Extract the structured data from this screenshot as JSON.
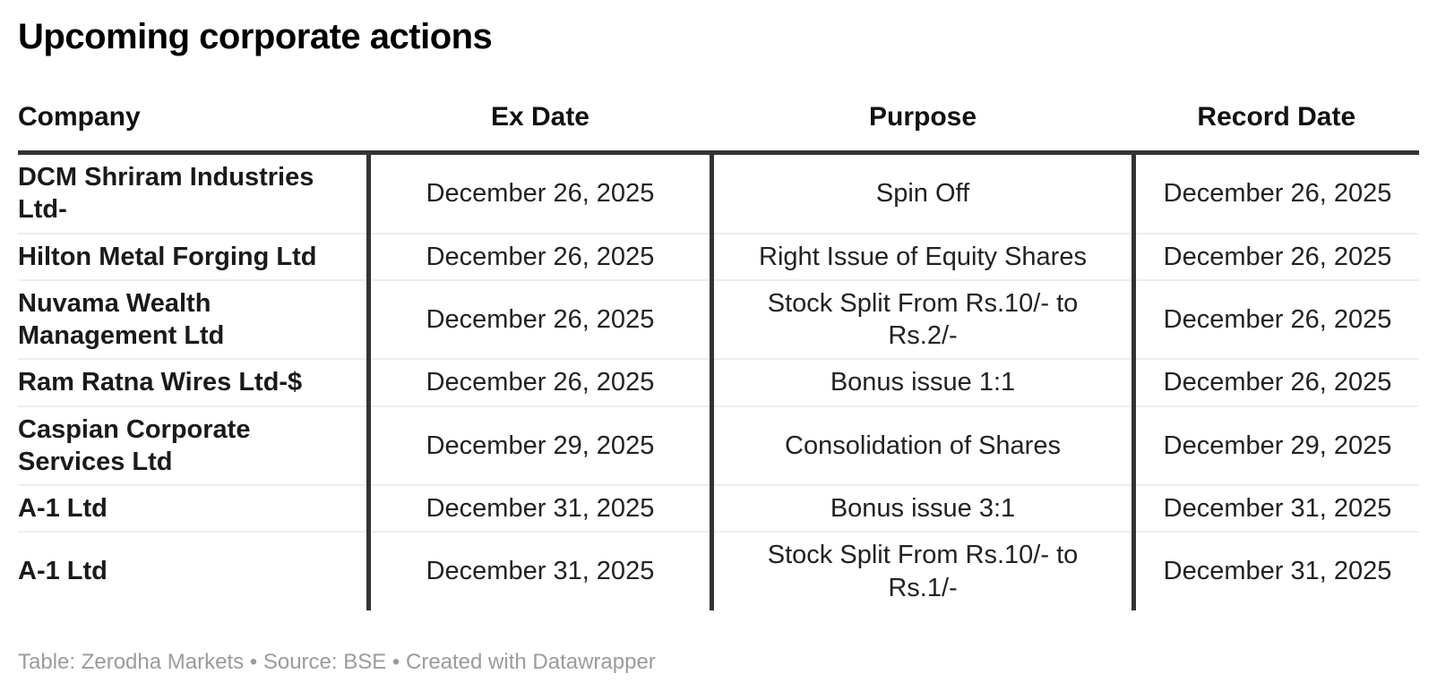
{
  "title": "Upcoming corporate actions",
  "footer": {
    "text": "Table: Zerodha Markets • Source: BSE • Created with Datawrapper"
  },
  "colors": {
    "title_text": "#000000",
    "body_text": "#222222",
    "header_rule": "#333333",
    "column_divider": "#333333",
    "row_separator": "#ededed",
    "footer_text": "#9b9b9b",
    "background": "#ffffff"
  },
  "chart_data": {
    "type": "table",
    "title": "Upcoming corporate actions",
    "columns": [
      {
        "label": "Company",
        "align": "left"
      },
      {
        "label": "Ex Date",
        "align": "center"
      },
      {
        "label": "Purpose",
        "align": "center"
      },
      {
        "label": "Record Date",
        "align": "center"
      }
    ],
    "column_width_pct": [
      25.03,
      24.49,
      30.12,
      20.36
    ],
    "rows": [
      [
        "DCM Shriram Industries Ltd-",
        "December 26, 2025",
        "Spin Off",
        "December 26, 2025"
      ],
      [
        "Hilton Metal Forging Ltd",
        "December 26, 2025",
        "Right Issue of Equity Shares",
        "December 26, 2025"
      ],
      [
        "Nuvama Wealth Management Ltd",
        "December 26, 2025",
        "Stock Split From Rs.10/- to Rs.2/-",
        "December 26, 2025"
      ],
      [
        "Ram Ratna Wires Ltd-$",
        "December 26, 2025",
        "Bonus issue 1:1",
        "December 26, 2025"
      ],
      [
        "Caspian Corporate Services Ltd",
        "December 29, 2025",
        "Consolidation of Shares",
        "December 29, 2025"
      ],
      [
        "A-1 Ltd",
        "December 31, 2025",
        "Bonus issue 3:1",
        "December 31, 2025"
      ],
      [
        "A-1 Ltd",
        "December 31, 2025",
        "Stock Split From Rs.10/- to Rs.1/-",
        "December 31, 2025"
      ]
    ],
    "source_note": "Table: Zerodha Markets • Source: BSE • Created with Datawrapper"
  }
}
